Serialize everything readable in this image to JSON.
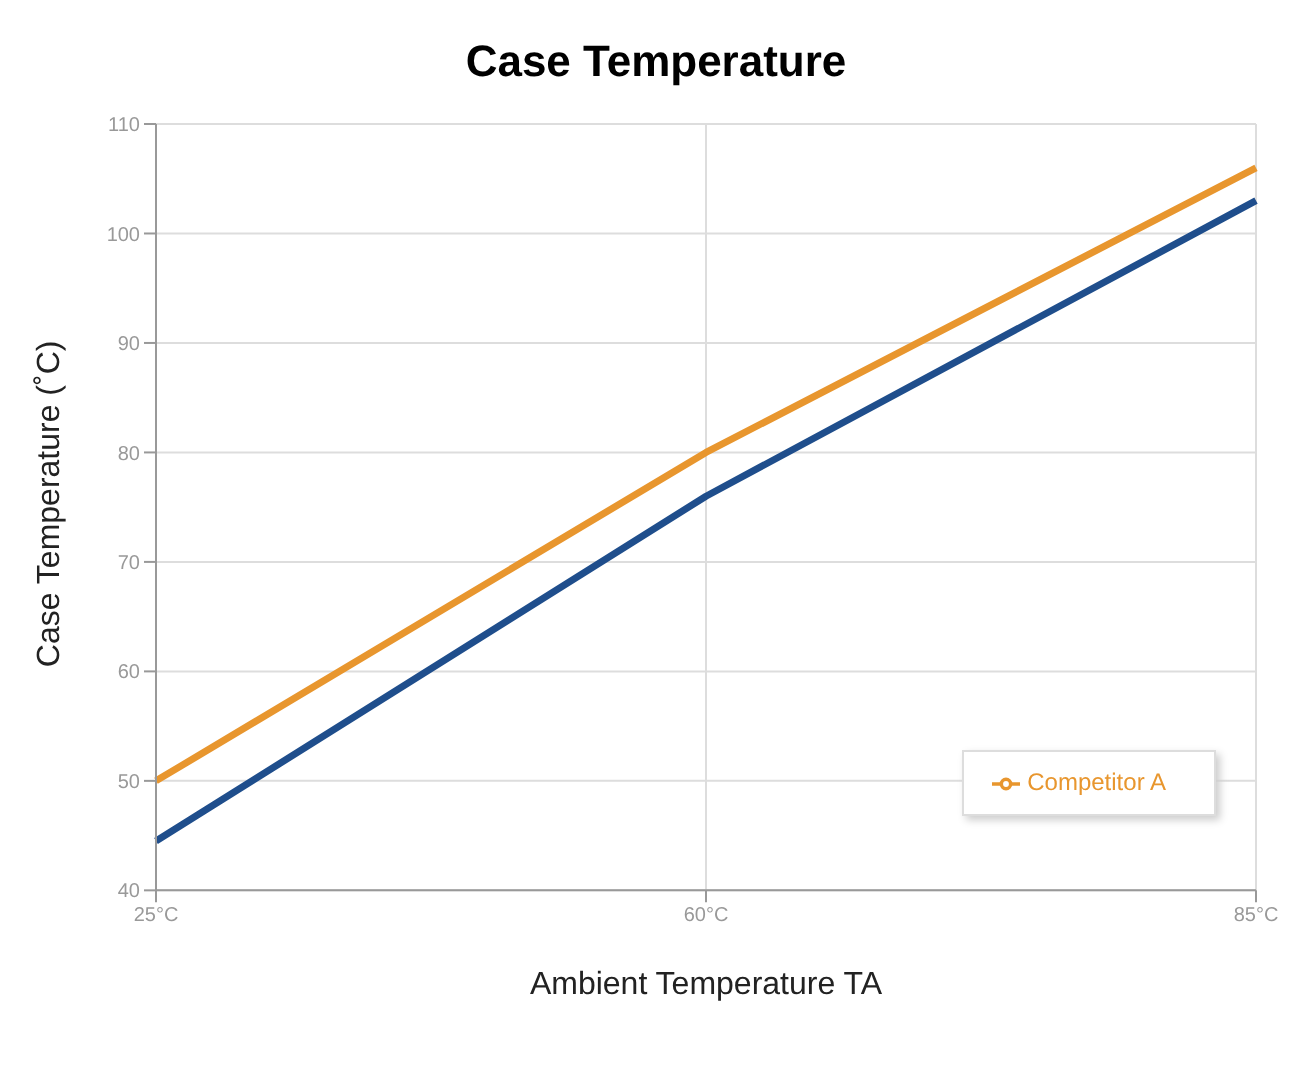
{
  "chart_data": {
    "type": "line",
    "title": "Case Temperature",
    "xlabel": "Ambient Temperature TA",
    "ylabel": "Case Temperature (˚C)",
    "categories": [
      "25°C",
      "60°C",
      "85°C"
    ],
    "series": [
      {
        "name": "Competitor A",
        "color": "#e8962e",
        "values": [
          50,
          80,
          106
        ]
      },
      {
        "color": "#1f4e8c",
        "values": [
          44.5,
          76,
          103
        ]
      }
    ],
    "ylim": [
      40,
      110
    ],
    "yticks": [
      40,
      50,
      60,
      70,
      80,
      90,
      100,
      110
    ],
    "grid": true,
    "legend": "bottom right",
    "marker": "none",
    "line_style": "solid"
  }
}
